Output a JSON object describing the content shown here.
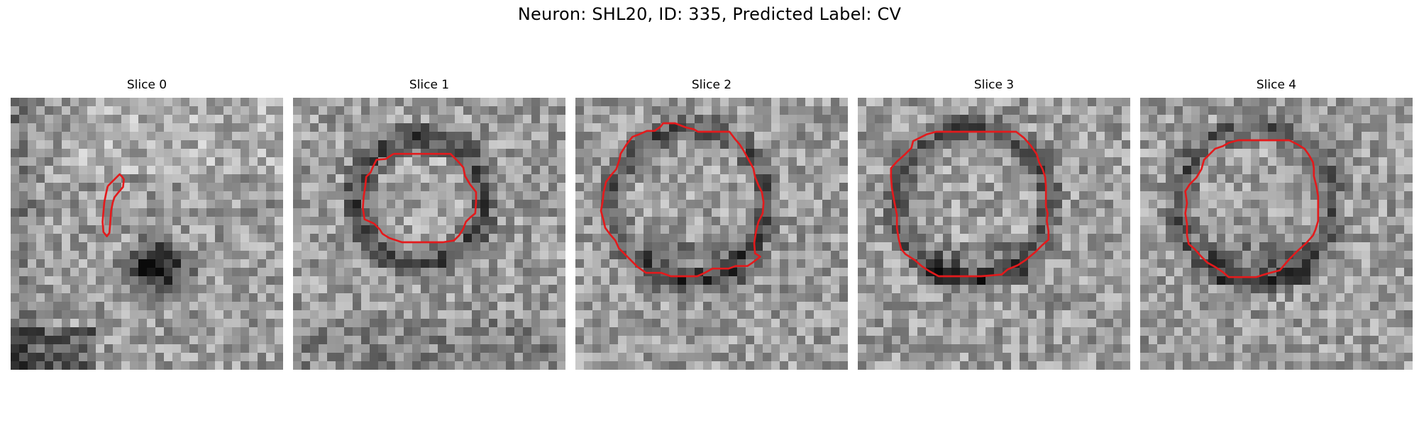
{
  "figure": {
    "title": "Neuron: SHL20, ID: 335, Predicted Label: CV"
  },
  "panels": [
    {
      "title": "Slice 0",
      "seed": 11,
      "pattern": "slice0"
    },
    {
      "title": "Slice 1",
      "seed": 23,
      "pattern": "ring-small"
    },
    {
      "title": "Slice 2",
      "seed": 37,
      "pattern": "ring-large"
    },
    {
      "title": "Slice 3",
      "seed": 41,
      "pattern": "ring-large"
    },
    {
      "title": "Slice 4",
      "seed": 53,
      "pattern": "ring-large"
    }
  ],
  "colors": {
    "contour": "#e31a1c",
    "colormap": "gray"
  }
}
